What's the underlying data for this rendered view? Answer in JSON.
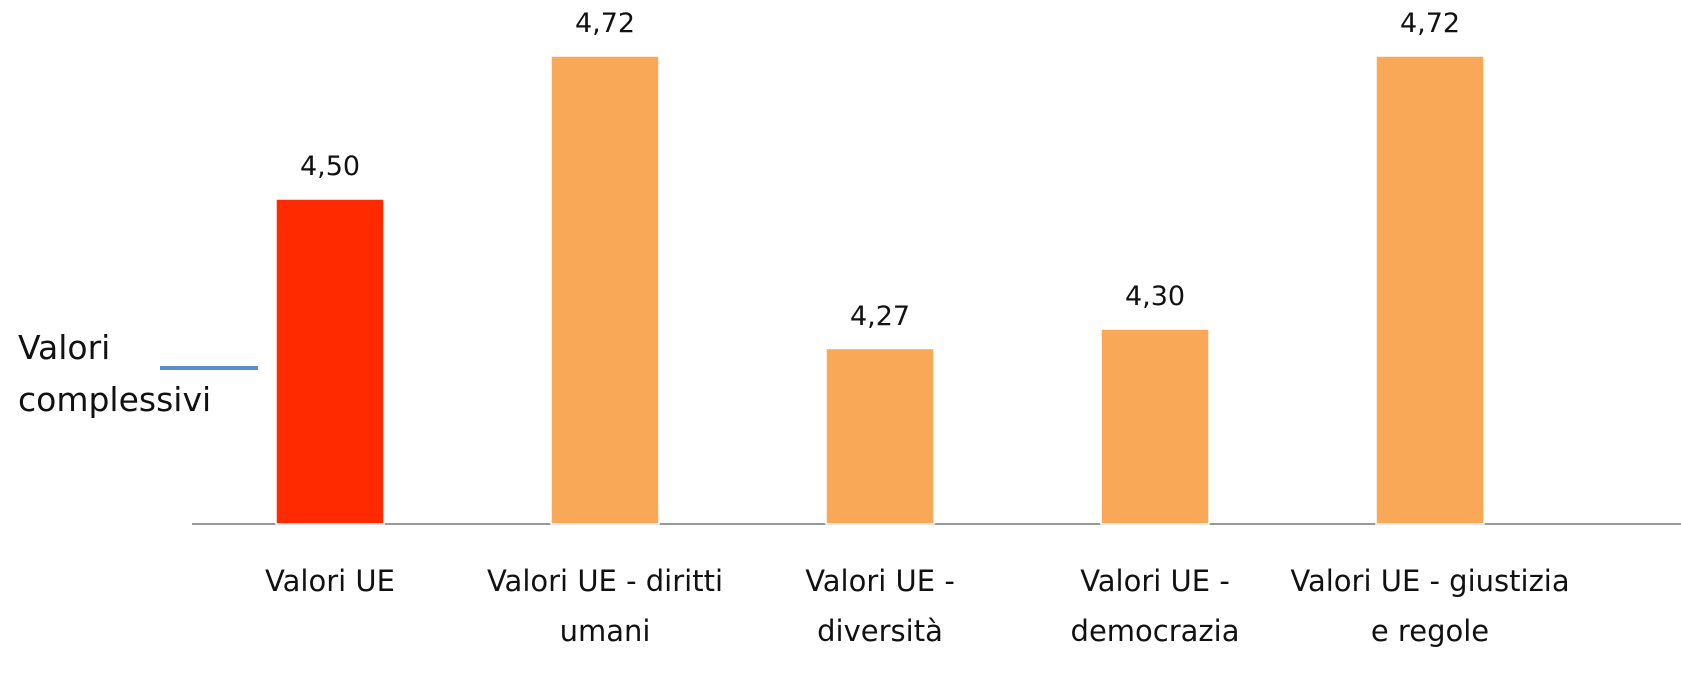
{
  "chart_data": {
    "type": "bar",
    "categories": [
      "Valori UE",
      "Valori UE - diritti umani",
      "Valori UE - diversità",
      "Valori UE - democrazia",
      "Valori UE - giustizia e regole"
    ],
    "series": [
      {
        "name": "Valori complessivi",
        "color": "#5b8fc7",
        "values": [
          4.5,
          4.72,
          4.27,
          4.3,
          4.72
        ],
        "value_labels": [
          "4,50",
          "4,72",
          "4,27",
          "4,30",
          "4,72"
        ],
        "colors": [
          "#ff2a00",
          "#f9a857",
          "#f9a857",
          "#f9a857",
          "#f9a857"
        ]
      }
    ],
    "ylim": [
      4.0,
      4.8
    ]
  }
}
